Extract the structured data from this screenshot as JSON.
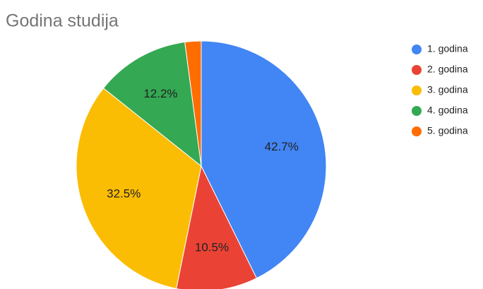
{
  "chart_data": {
    "type": "pie",
    "title": "Godina studija",
    "categories": [
      "1. godina",
      "2. godina",
      "3. godina",
      "4. godina",
      "5. godina"
    ],
    "series": [
      {
        "values": [
          42.7,
          10.5,
          32.5,
          12.2,
          2.1
        ],
        "value_labels": [
          "42.7%",
          "10.5%",
          "32.5%",
          "12.2%",
          null
        ],
        "colors": [
          "#4285f4",
          "#ea4335",
          "#fbbc04",
          "#34a853",
          "#ff6d01"
        ]
      }
    ],
    "legend": "right"
  }
}
